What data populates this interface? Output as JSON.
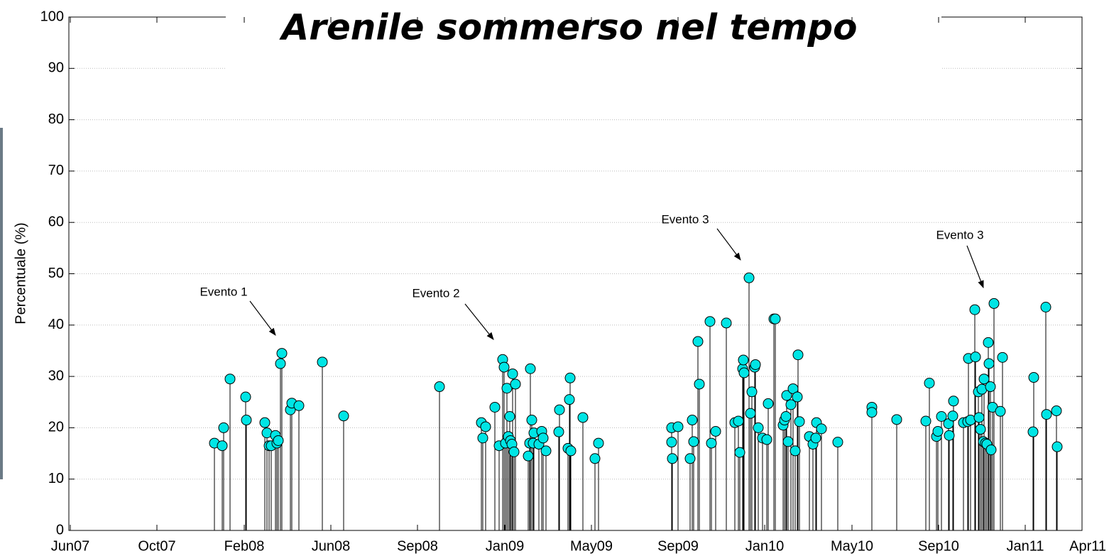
{
  "chart_data": {
    "type": "stem",
    "title": "Arenile sommerso nel tempo",
    "y_label": "Percentuale (%)",
    "xlim": [
      -2,
      1425
    ],
    "ylim": [
      0,
      100
    ],
    "xticks": [
      {
        "value": 0,
        "label": "Jun07"
      },
      {
        "value": 122,
        "label": "Oct07"
      },
      {
        "value": 245,
        "label": "Feb08"
      },
      {
        "value": 367,
        "label": "Jun08"
      },
      {
        "value": 489,
        "label": "Sep08"
      },
      {
        "value": 612,
        "label": "Jan09"
      },
      {
        "value": 734,
        "label": "May09"
      },
      {
        "value": 856,
        "label": "Sep09"
      },
      {
        "value": 978,
        "label": "Jan10"
      },
      {
        "value": 1101,
        "label": "May10"
      },
      {
        "value": 1223,
        "label": "Sep10"
      },
      {
        "value": 1345,
        "label": "Jan11"
      },
      {
        "value": 1425,
        "label": "Apr11"
      }
    ],
    "yticks": [
      0,
      10,
      20,
      30,
      40,
      50,
      60,
      70,
      80,
      90,
      100
    ],
    "grid": true,
    "marker_color": "#00e5e5",
    "x": [
      203,
      214,
      216,
      225,
      247,
      248,
      274,
      277,
      280,
      283,
      289,
      291,
      293,
      296,
      298,
      310,
      312,
      322,
      355,
      385,
      520,
      579,
      581,
      585,
      598,
      604,
      609,
      611,
      613,
      615,
      617,
      619,
      620,
      622,
      623,
      625,
      627,
      645,
      647,
      648,
      650,
      652,
      653,
      660,
      664,
      666,
      670,
      688,
      689,
      701,
      703,
      704,
      705,
      722,
      739,
      744,
      847,
      847,
      848,
      856,
      873,
      876,
      878,
      884,
      886,
      901,
      903,
      909,
      924,
      936,
      941,
      943,
      947,
      948,
      949,
      956,
      958,
      960,
      964,
      965,
      969,
      975,
      981,
      983,
      991,
      993,
      1004,
      1006,
      1008,
      1009,
      1011,
      1015,
      1018,
      1021,
      1024,
      1025,
      1027,
      1041,
      1046,
      1050,
      1051,
      1058,
      1081,
      1129,
      1129,
      1164,
      1205,
      1210,
      1220,
      1222,
      1227,
      1237,
      1238,
      1243,
      1244,
      1258,
      1264,
      1265,
      1268,
      1274,
      1275,
      1279,
      1280,
      1282,
      1284,
      1286,
      1287,
      1289,
      1291,
      1293,
      1294,
      1296,
      1297,
      1299,
      1301,
      1310,
      1313,
      1356,
      1357,
      1374,
      1375,
      1389,
      1390
    ],
    "values": [
      17,
      16.5,
      20,
      29.5,
      26,
      21.5,
      21,
      19,
      16.5,
      16.5,
      18.5,
      17,
      17.5,
      32.5,
      34.5,
      23.5,
      24.8,
      24.3,
      32.8,
      22.3,
      28,
      21,
      18,
      20.2,
      24,
      16.5,
      33.3,
      31.8,
      17,
      27.7,
      18.3,
      22.2,
      17.5,
      16.8,
      30.5,
      15.3,
      28.5,
      14.5,
      17,
      31.5,
      21.5,
      17,
      19,
      16.8,
      19.3,
      18,
      15.5,
      19.2,
      23.5,
      16,
      25.5,
      29.7,
      15.5,
      22,
      14,
      17,
      17.2,
      20,
      14,
      20.2,
      14,
      21.5,
      17.3,
      36.8,
      28.5,
      40.7,
      17,
      19.3,
      40.4,
      21,
      21.3,
      15.2,
      31.5,
      33.2,
      30.7,
      49.2,
      22.8,
      27,
      31.8,
      32.3,
      20,
      18,
      17.7,
      24.7,
      41.2,
      41.2,
      20.5,
      21.5,
      22.2,
      26.3,
      17.3,
      24.5,
      27.6,
      15.5,
      26,
      34.2,
      21.2,
      18.3,
      16.8,
      18,
      21,
      19.8,
      17.2,
      24,
      23,
      21.6,
      21.3,
      28.7,
      18.3,
      19.3,
      22.2,
      20.8,
      18.5,
      22.3,
      25.2,
      21,
      21.2,
      33.5,
      21.5,
      43,
      33.8,
      27,
      22,
      19.7,
      27.5,
      17.3,
      29.5,
      17,
      16.8,
      36.6,
      32.5,
      28,
      15.7,
      24,
      44.2,
      23.2,
      33.7,
      19.2,
      29.8,
      43.5,
      22.6,
      23.3,
      16.3
    ],
    "annotations": [
      "Evento 1",
      "Evento 2",
      "Evento 3",
      "Evento 3"
    ]
  }
}
